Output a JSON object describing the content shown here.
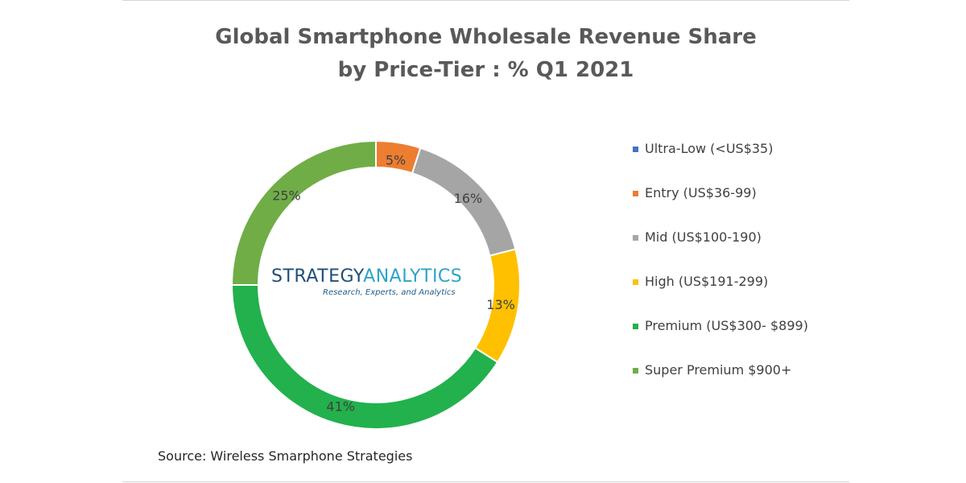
{
  "chart_data": {
    "type": "pie",
    "subtype": "donut",
    "title": "Global Smartphone Wholesale Revenue Share by Price-Tier : % Q1 2021",
    "title_lines": [
      "Global Smartphone Wholesale Revenue Share",
      "by Price-Tier : % Q1 2021"
    ],
    "categories": [
      "Ultra-Low (<US$35)",
      "Entry (US$36-99)",
      "Mid (US$100-190)",
      "High (US$191-299)",
      "Premium (US$300- $899)",
      "Super Premium $900+"
    ],
    "values": [
      0,
      5,
      16,
      13,
      41,
      25
    ],
    "labels": [
      "",
      "5%",
      "16%",
      "13%",
      "41%",
      "25%"
    ],
    "colors": [
      "#4472c4",
      "#ed7d31",
      "#a5a5a5",
      "#ffc000",
      "#22b14c",
      "#70ad47"
    ],
    "legend_position": "right",
    "unit": "%"
  },
  "logo": {
    "word1": "STRATEGY",
    "word2": "ANALYTICS",
    "tagline": "Research, Experts, and Analytics"
  },
  "source": "Source: Wireless Smarphone Strategies"
}
